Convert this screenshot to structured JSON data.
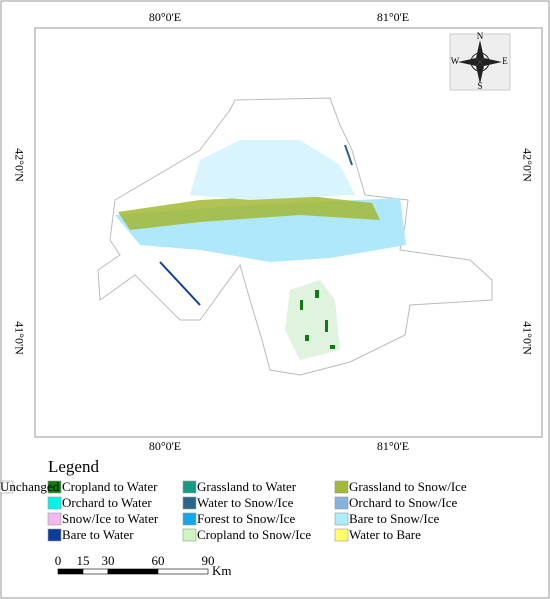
{
  "map": {
    "coordinates": {
      "top": [
        "80°0'E",
        "81°0'E"
      ],
      "bottom": [
        "80°0'E",
        "81°0'E"
      ],
      "left": [
        "42°0'N",
        "41°0'N"
      ],
      "right": [
        "42°0'N",
        "41°0'N"
      ]
    },
    "compass": {
      "n": "N",
      "s": "S",
      "e": "E",
      "w": "W"
    },
    "legend": {
      "title": "Legend",
      "items": [
        {
          "label": "Cropland to Water",
          "color": "#137a13"
        },
        {
          "label": "Orchard to Water",
          "color": "#00f5e6"
        },
        {
          "label": "Snow/Ice to Water",
          "color": "#f3b8ef"
        },
        {
          "label": "Bare to Water",
          "color": "#0b3d9c"
        },
        {
          "label": "Grassland to Water",
          "color": "#169a86"
        },
        {
          "label": "Water to Snow/Ice",
          "color": "#2a6688"
        },
        {
          "label": "Forest to Snow/Ice",
          "color": "#12a8ee"
        },
        {
          "label": "Cropland to Snow/Ice",
          "color": "#ccf5c0"
        },
        {
          "label": "Grassland to Snow/Ice",
          "color": "#a3b834"
        },
        {
          "label": "Orchard to Snow/Ice",
          "color": "#86b2dc"
        },
        {
          "label": "Bare to Snow/Ice",
          "color": "#aaeefc"
        },
        {
          "label": "Water to Bare",
          "color": "#ffff66"
        },
        {
          "label": "Unchanged",
          "color": "#ffffff"
        }
      ]
    },
    "scale": {
      "ticks": [
        0,
        15,
        30,
        60,
        90
      ],
      "unit": "Km"
    }
  }
}
